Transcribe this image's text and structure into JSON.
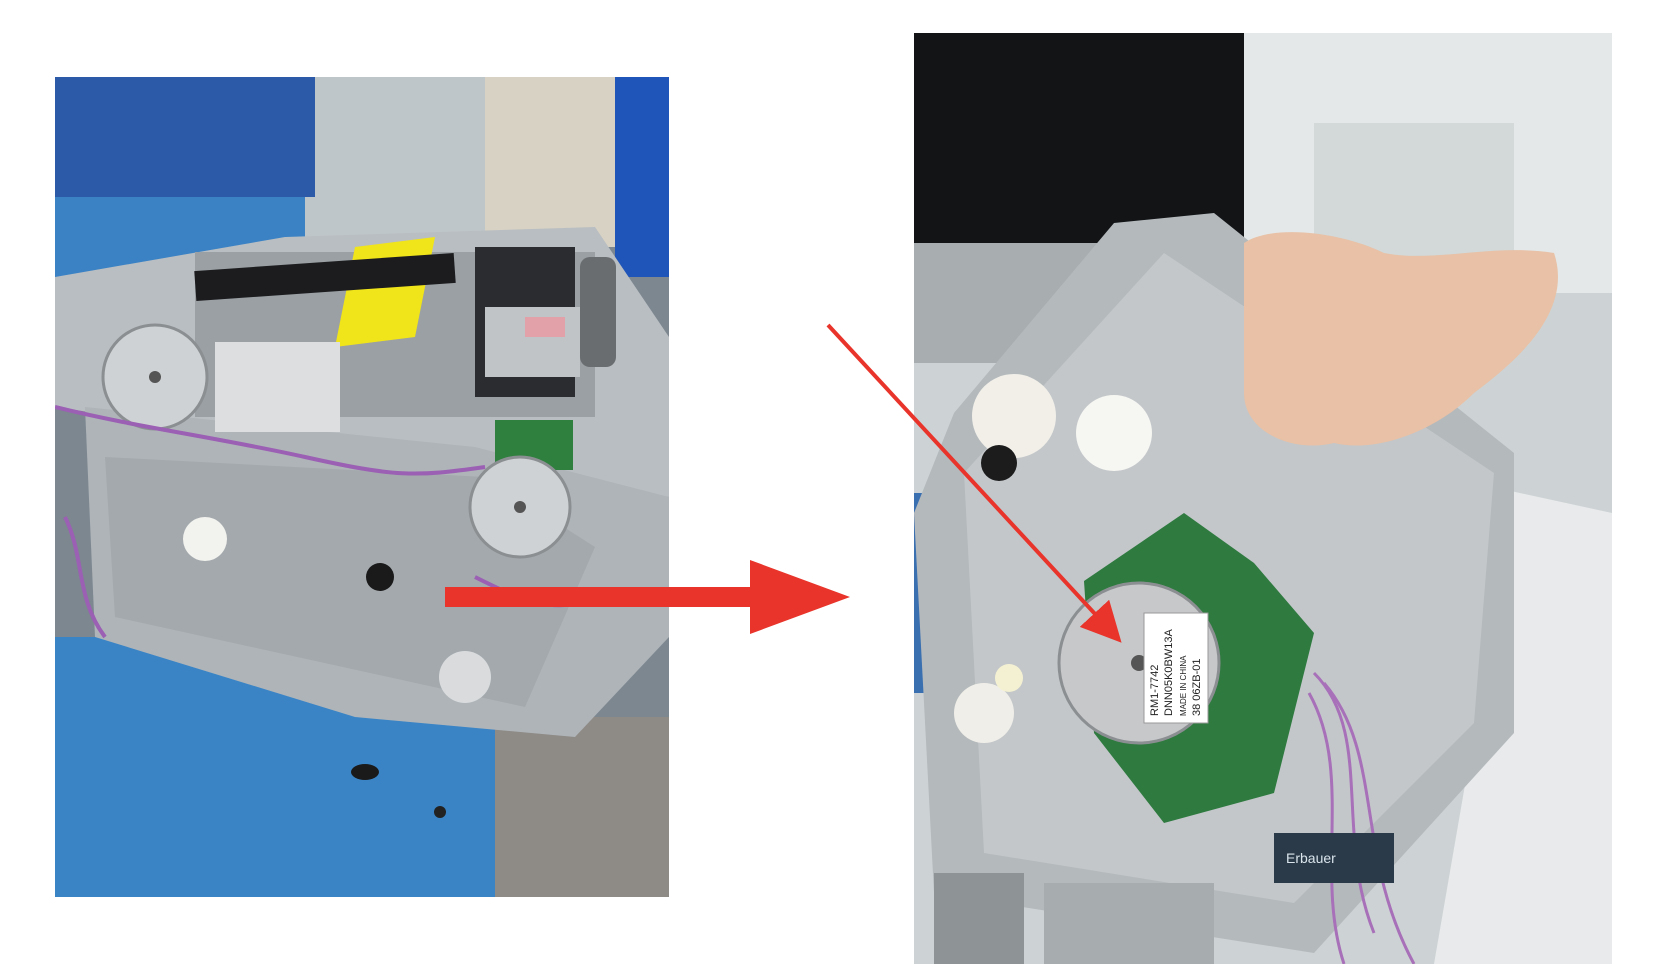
{
  "left_photo": {
    "label_tag": "",
    "description_visible_text": ""
  },
  "right_photo": {
    "motor_label_line1": "RM1-7742",
    "motor_label_line2": "DNN05K0BW13A",
    "motor_label_line3": "MADE IN CHINA",
    "motor_label_line4": "38 06ZB-01",
    "brand_text": "Erbauer"
  },
  "colors": {
    "arrow": "#e8342a",
    "background": "#ffffff"
  }
}
